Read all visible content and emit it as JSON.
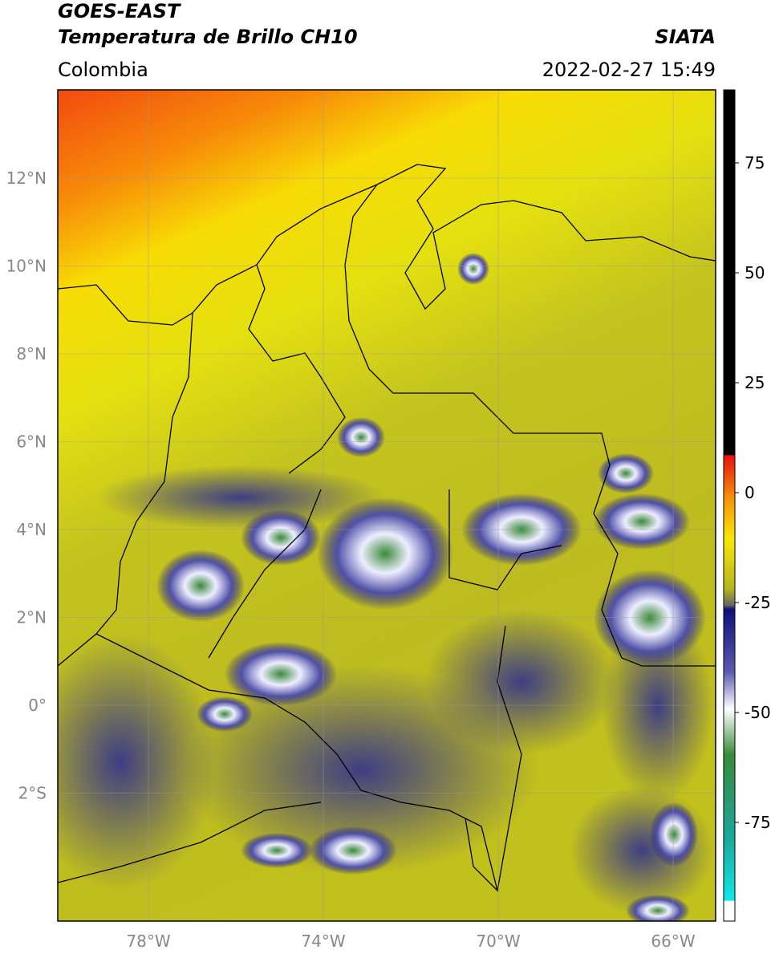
{
  "header": {
    "title_line1": "GOES-EAST",
    "title_line2": "Temperatura de Brillo CH10",
    "source": "SIATA",
    "region": "Colombia",
    "datetime": "2022-02-27 15:49"
  },
  "map": {
    "lat_labels": [
      "12°N",
      "10°N",
      "8°N",
      "6°N",
      "4°N",
      "2°N",
      "0°",
      "2°S"
    ],
    "lon_labels": [
      "78°W",
      "74°W",
      "70°W",
      "66°W"
    ]
  },
  "colorbar": {
    "ticks": [
      75,
      50,
      25,
      0,
      -25,
      -50,
      -75
    ]
  }
}
